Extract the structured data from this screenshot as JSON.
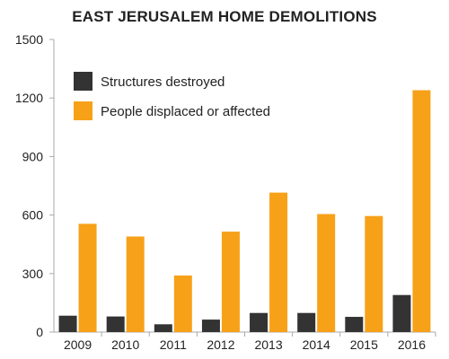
{
  "chart_data": {
    "type": "bar",
    "title": "EAST JERUSALEM HOME DEMOLITIONS",
    "xlabel": "",
    "ylabel": "",
    "categories": [
      "2009",
      "2010",
      "2011",
      "2012",
      "2013",
      "2014",
      "2015",
      "2016"
    ],
    "series": [
      {
        "name": "Structures destroyed",
        "color": "#333333",
        "values": [
          84,
          80,
          40,
          64,
          98,
          98,
          78,
          190
        ]
      },
      {
        "name": "People displaced or affected",
        "color": "#f7a119",
        "values": [
          555,
          490,
          290,
          515,
          715,
          605,
          595,
          1240
        ]
      }
    ],
    "ylim": [
      0,
      1500
    ],
    "yticks": [
      "0",
      "300",
      "600",
      "900",
      "1200",
      "1500"
    ],
    "grid": false,
    "legend_position": "top-left"
  }
}
